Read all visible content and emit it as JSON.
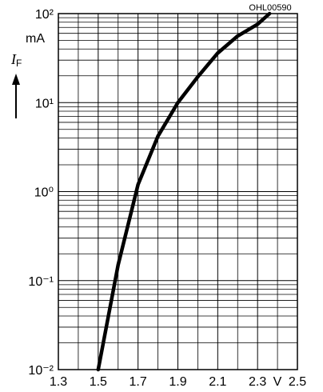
{
  "chart_data": {
    "type": "line",
    "code": "OHL00590",
    "ylabel_symbol": "I",
    "ylabel_subscript": "F",
    "yunit": "mA",
    "xunit": "V",
    "x": [
      1.5,
      1.6,
      1.7,
      1.8,
      1.9,
      2.0,
      2.1,
      2.2,
      2.3,
      2.36
    ],
    "series": [
      {
        "color": "#000000",
        "values": [
          0.01,
          0.15,
          1.2,
          4.2,
          10,
          19.5,
          36,
          56,
          76,
          100
        ]
      }
    ],
    "xlim": [
      1.3,
      2.5
    ],
    "xticks": [
      1.3,
      1.5,
      1.7,
      1.9,
      2.1,
      2.3,
      2.5
    ],
    "ylim": [
      0.01,
      100
    ],
    "ylog": true,
    "yticks": [
      {
        "value": 0.01,
        "label": "10⁻²"
      },
      {
        "value": 0.1,
        "label": "10⁻¹"
      },
      {
        "value": 1,
        "label": "10⁰"
      },
      {
        "value": 10,
        "label": "10¹"
      },
      {
        "value": 100,
        "label": "10²"
      }
    ],
    "grid": true,
    "minor_grid": true
  }
}
